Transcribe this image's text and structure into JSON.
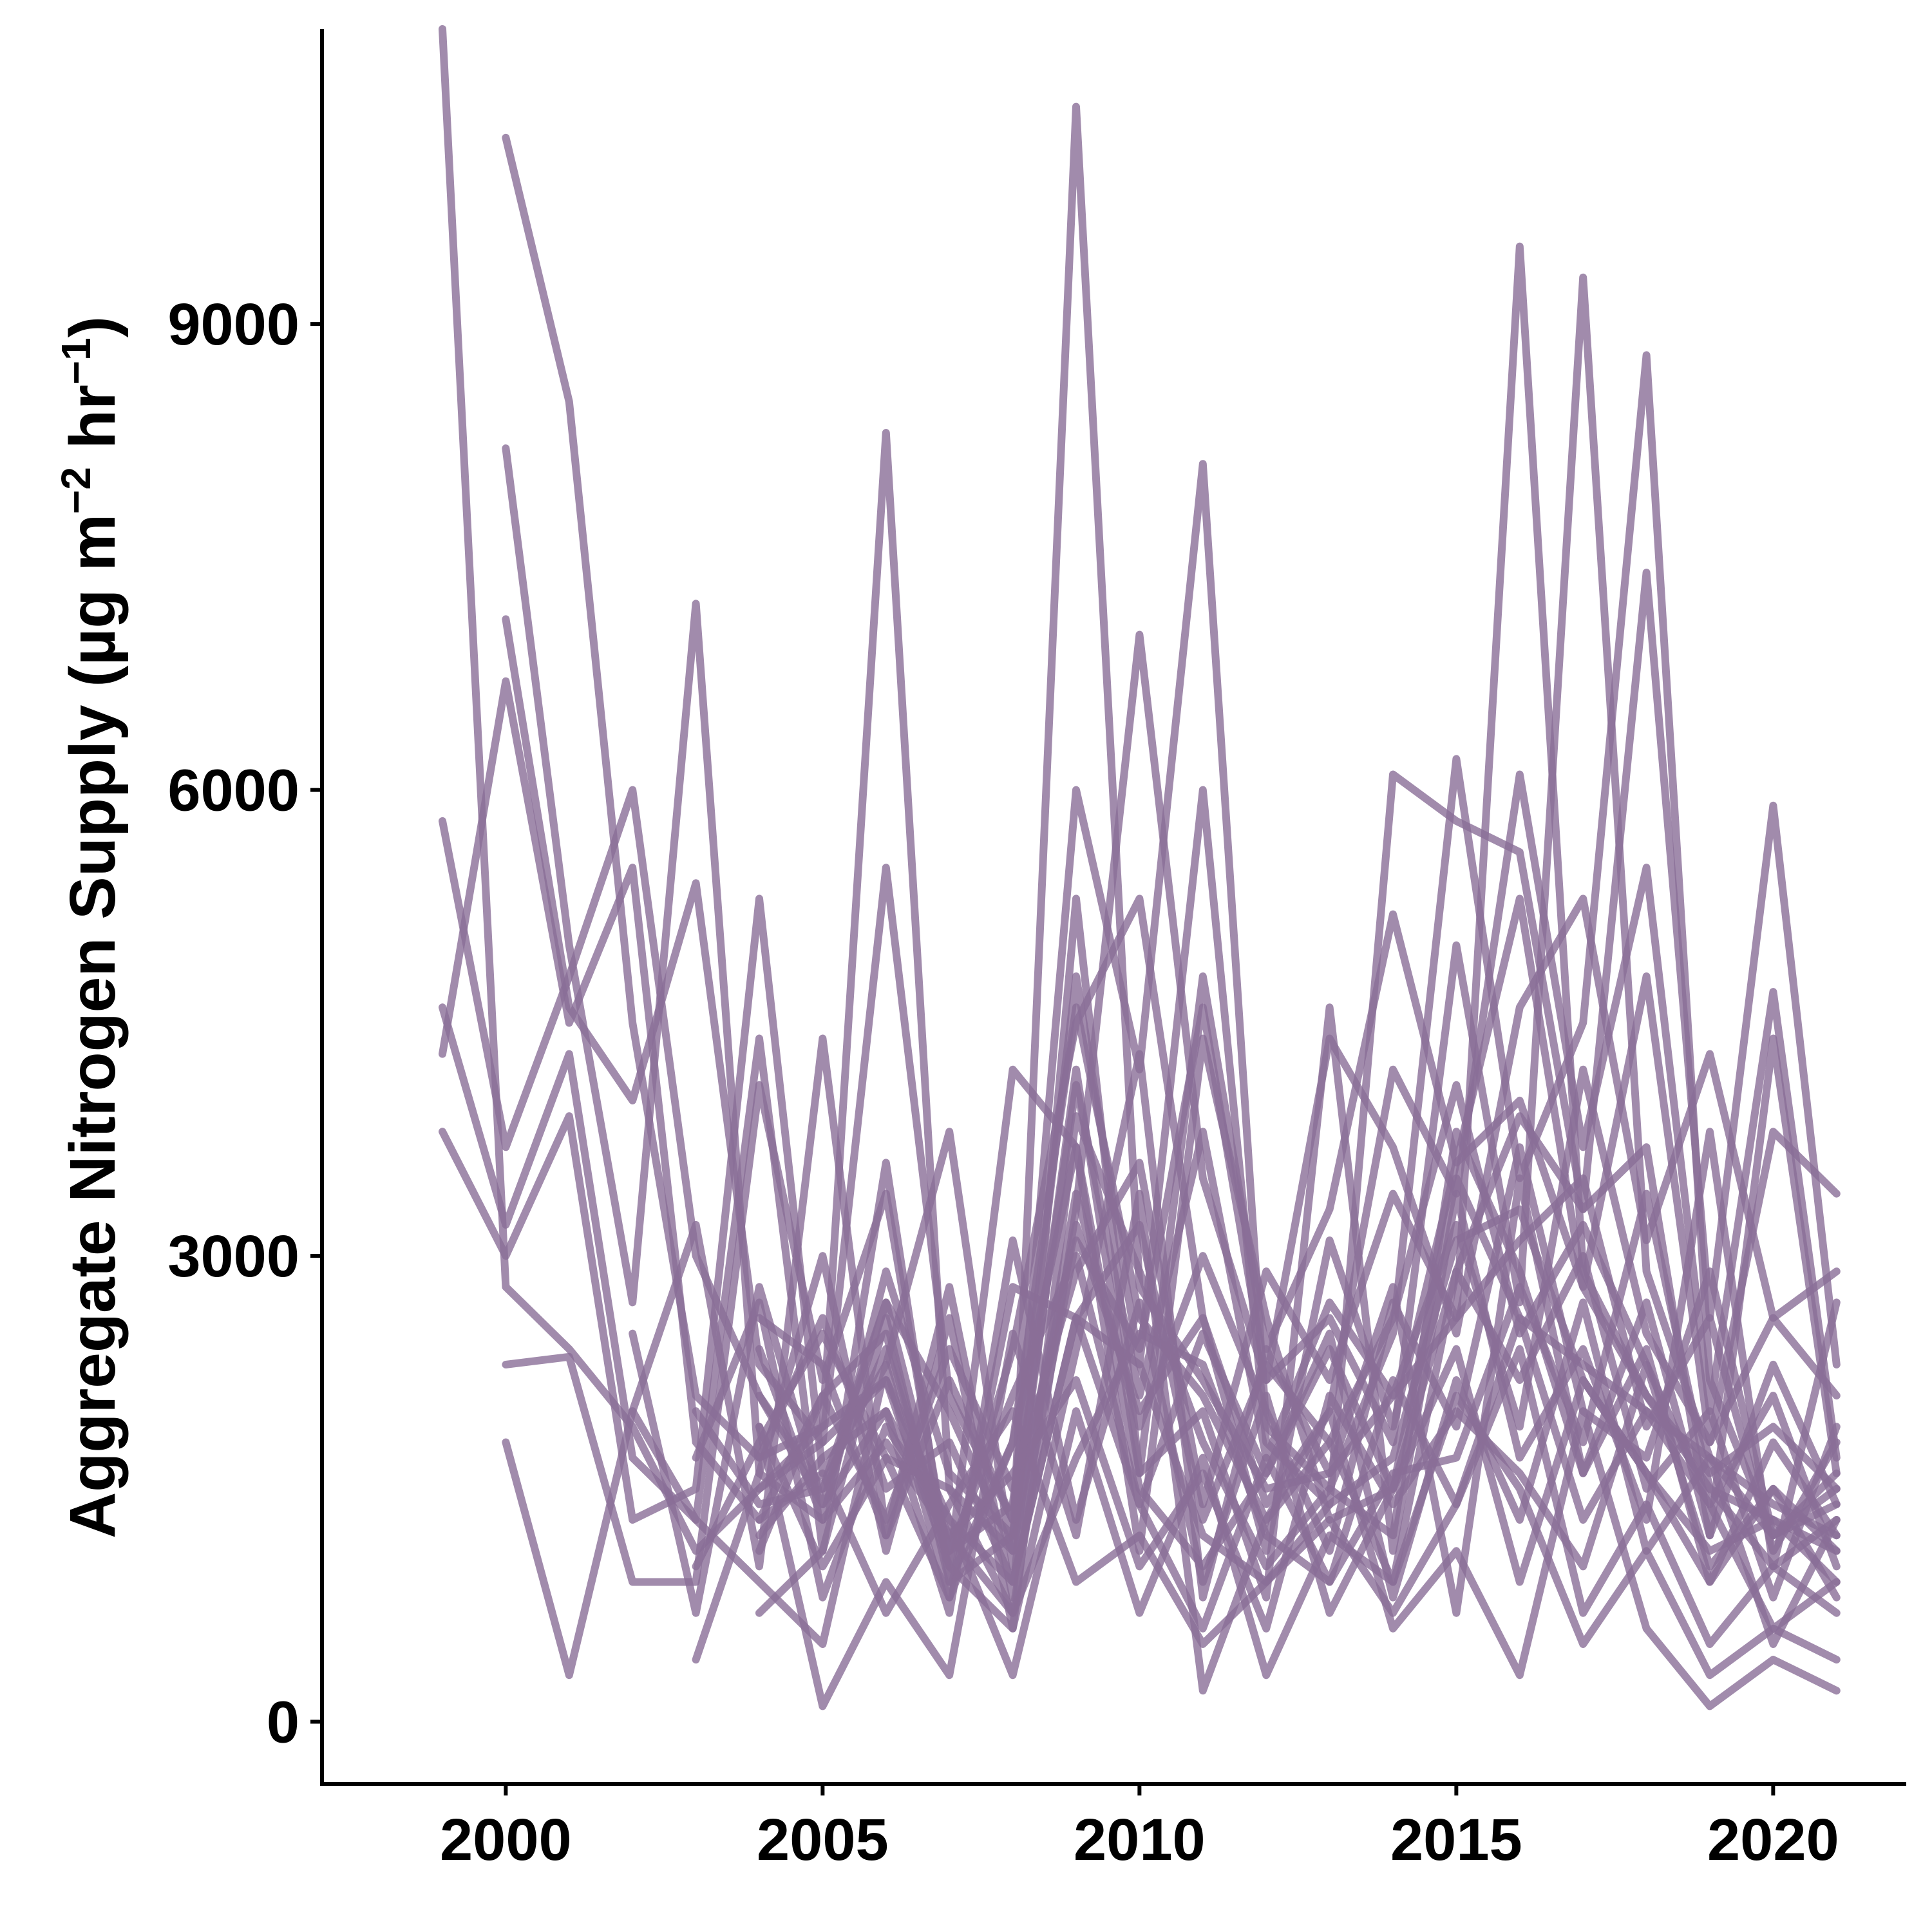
{
  "chart_data": {
    "type": "line",
    "title": "",
    "xlabel": "",
    "ylabel": {
      "text": "Aggregate Nitrogen Supply (µg  m",
      "sup1": "−2",
      "mid": "  hr",
      "sup2": "−1",
      "end": ")"
    },
    "xlim": [
      1997.1,
      2022.1
    ],
    "ylim": [
      -400,
      10900
    ],
    "xticks": [
      2000,
      2005,
      2010,
      2015,
      2020
    ],
    "yticks": [
      0,
      3000,
      6000,
      9000
    ],
    "xtick_labels": [
      "2000",
      "2005",
      "2010",
      "2015",
      "2020"
    ],
    "ytick_labels": [
      "0",
      "3000",
      "6000",
      "9000"
    ],
    "grid": false,
    "legend": "none",
    "line_color": "#8a6e97",
    "line_opacity": 0.8,
    "series": [
      {
        "x": [
          1999,
          2000,
          2001,
          2002,
          2003,
          2004,
          2005,
          2006,
          2007,
          2008,
          2009,
          2010,
          2011,
          2012,
          2013,
          2014,
          2015,
          2016,
          2017,
          2018,
          2019,
          2020,
          2021
        ],
        "values": [
          10900,
          2800,
          2400,
          1900,
          1100,
          1500,
          1800,
          2200,
          1300,
          900,
          2600,
          2300,
          1200,
          900,
          1400,
          1700,
          3100,
          3300,
          2200,
          1600,
          1100,
          1300,
          900
        ]
      },
      {
        "x": [
          2000,
          2001,
          2002,
          2003,
          2004,
          2005,
          2006,
          2007,
          2008,
          2009,
          2010,
          2011,
          2012,
          2013,
          2014,
          2015,
          2016,
          2017,
          2018,
          2019,
          2020,
          2021
        ],
        "values": [
          10200,
          8500,
          4500,
          2100,
          1700,
          1900,
          8300,
          1500,
          1100,
          10400,
          2800,
          2200,
          1500,
          1600,
          2100,
          2600,
          9500,
          2900,
          2100,
          1500,
          1300,
          1100
        ]
      },
      {
        "x": [
          2000,
          2001,
          2002,
          2003,
          2004,
          2005,
          2006,
          2007,
          2008,
          2009,
          2010,
          2011,
          2012,
          2013,
          2014,
          2015,
          2016,
          2017,
          2018,
          2019,
          2020,
          2021
        ],
        "values": [
          8200,
          5000,
          2700,
          7200,
          1600,
          1300,
          1800,
          1200,
          700,
          3300,
          7000,
          3500,
          2200,
          2600,
          1800,
          5000,
          2700,
          9300,
          2900,
          1700,
          1400,
          1200
        ]
      },
      {
        "x": [
          2000,
          2001,
          2002,
          2003,
          2004,
          2005,
          2006,
          2007,
          2008,
          2009,
          2010,
          2011,
          2012,
          2013,
          2014,
          2015,
          2016,
          2017,
          2018,
          2019,
          2020,
          2021
        ],
        "values": [
          7100,
          4600,
          4000,
          5400,
          2300,
          1800,
          5500,
          2100,
          1300,
          6000,
          4200,
          8100,
          1900,
          1500,
          2500,
          6200,
          3500,
          4500,
          8800,
          2200,
          1200,
          1400
        ]
      },
      {
        "x": [
          1999,
          2000,
          2001,
          2002,
          2003,
          2004,
          2005,
          2006,
          2007,
          2008,
          2009,
          2010,
          2011,
          2012,
          2013,
          2014,
          2015,
          2016,
          2017,
          2018,
          2019,
          2020,
          2021
        ],
        "values": [
          5800,
          3700,
          4800,
          6000,
          3000,
          2100,
          1500,
          2700,
          1100,
          1400,
          4800,
          2300,
          6000,
          1800,
          1400,
          6100,
          5800,
          5600,
          3300,
          7400,
          2600,
          5900,
          2300
        ]
      },
      {
        "x": [
          1999,
          2000,
          2001,
          2002,
          2003,
          2004,
          2005,
          2006,
          2007,
          2008,
          2009,
          2010,
          2011,
          2012,
          2013,
          2014,
          2015,
          2016,
          2017,
          2018,
          2019,
          2020,
          2021
        ],
        "values": [
          4300,
          6700,
          4500,
          5500,
          1800,
          1300,
          2100,
          2500,
          1000,
          2400,
          4500,
          5300,
          2600,
          1400,
          2000,
          4200,
          3400,
          6100,
          3700,
          5500,
          2000,
          4700,
          1700
        ]
      },
      {
        "x": [
          1999,
          2000,
          2001,
          2002,
          2003,
          2004,
          2005,
          2006,
          2007,
          2008,
          2009,
          2010,
          2011,
          2012,
          2013,
          2014,
          2015,
          2016,
          2017,
          2018,
          2019,
          2020,
          2021
        ],
        "values": [
          4600,
          3200,
          4300,
          1700,
          1300,
          4400,
          1100,
          3600,
          900,
          1200,
          4200,
          1600,
          4800,
          2400,
          3300,
          5200,
          3600,
          5300,
          2800,
          4800,
          1800,
          3800,
          3400
        ]
      },
      {
        "x": [
          1999,
          2000,
          2001,
          2002,
          2003,
          2004,
          2005,
          2006,
          2007,
          2008,
          2009,
          2010,
          2011,
          2012,
          2013,
          2014,
          2015,
          2016,
          2017,
          2018,
          2019,
          2020,
          2021
        ],
        "values": [
          3800,
          3000,
          3900,
          1300,
          1500,
          5300,
          1600,
          2300,
          3800,
          1000,
          3100,
          2400,
          4600,
          2200,
          4400,
          3700,
          2500,
          4600,
          5300,
          3100,
          4300,
          2600,
          2900
        ]
      },
      {
        "x": [
          2000,
          2001,
          2002,
          2003,
          2004,
          2005,
          2006,
          2007,
          2008,
          2009,
          2010,
          2011,
          2012,
          2013,
          2014,
          2015,
          2016,
          2017,
          2018,
          2019,
          2020,
          2021
        ],
        "values": [
          2300,
          2350,
          900,
          900,
          4100,
          2200,
          3400,
          1000,
          4200,
          3700,
          1100,
          4400,
          2600,
          1300,
          1500,
          2900,
          3900,
          3300,
          3700,
          1200,
          4400,
          1600
        ]
      },
      {
        "x": [
          2000,
          2001,
          2002,
          2003,
          2004,
          2005,
          2006,
          2007,
          2008,
          2009,
          2010,
          2011,
          2012,
          2013,
          2014,
          2015,
          2016,
          2017,
          2018,
          2019,
          2020,
          2021
        ],
        "values": [
          1800,
          300,
          2000,
          3200,
          1000,
          4400,
          1200,
          2800,
          800,
          5300,
          1600,
          2000,
          800,
          4600,
          1100,
          3400,
          1700,
          2400,
          1300,
          3800,
          1000,
          2700
        ]
      },
      {
        "x": [
          2002,
          2003,
          2004,
          2005,
          2006,
          2007,
          2008,
          2009,
          2010,
          2011,
          2012,
          2013,
          2014,
          2015,
          2016,
          2017,
          2018,
          2019,
          2020,
          2021
        ],
        "values": [
          2000,
          1300,
          900,
          500,
          2300,
          800,
          2800,
          2600,
          1400,
          600,
          1700,
          900,
          2200,
          1400,
          2600,
          1300,
          2000,
          1400,
          600,
          900
        ]
      },
      {
        "x": [
          2002,
          2003,
          2004,
          2005,
          2006,
          2007,
          2008,
          2009,
          2010,
          2011,
          2012,
          2013,
          2014,
          2015,
          2016,
          2017,
          2018,
          2019,
          2020,
          2021
        ],
        "values": [
          2500,
          700,
          2800,
          1400,
          2000,
          700,
          3100,
          1300,
          2700,
          900,
          2100,
          700,
          1500,
          2400,
          900,
          2200,
          1600,
          900,
          1800,
          1200
        ]
      },
      {
        "x": [
          2003,
          2004,
          2005,
          2006,
          2007,
          2008,
          2009,
          2010,
          2011,
          2012,
          2013,
          2014,
          2015,
          2016,
          2017,
          2018,
          2019,
          2020,
          2021
        ],
        "values": [
          400,
          1600,
          3000,
          1100,
          2600,
          600,
          2400,
          4300,
          800,
          2400,
          1600,
          2800,
          700,
          3500,
          1600,
          2400,
          900,
          1500,
          800
        ]
      },
      {
        "x": [
          2004,
          2005,
          2006,
          2007,
          2008,
          2009,
          2010,
          2011,
          2012,
          2013,
          2014,
          2015,
          2016,
          2017,
          2018,
          2019,
          2020,
          2021
        ],
        "values": [
          700,
          1100,
          2600,
          900,
          1800,
          3700,
          1500,
          1000,
          1600,
          2500,
          800,
          2200,
          1300,
          2700,
          1100,
          1700,
          500,
          1300
        ]
      },
      {
        "x": [
          2004,
          2005,
          2006,
          2007,
          2008,
          2009,
          2010,
          2011,
          2012,
          2013,
          2014,
          2015,
          2016,
          2017,
          2018,
          2019,
          2020,
          2021
        ],
        "values": [
          1900,
          100,
          900,
          300,
          2500,
          1200,
          3400,
          200,
          1300,
          2000,
          600,
          1100,
          300,
          2000,
          600,
          100,
          400,
          200
        ]
      },
      {
        "x": [
          2003,
          2004,
          2005,
          2006,
          2007,
          2008,
          2009,
          2010,
          2011,
          2012,
          2013,
          2014,
          2015,
          2016,
          2017,
          2018,
          2019,
          2020,
          2021
        ],
        "values": [
          1700,
          2700,
          800,
          1900,
          1300,
          300,
          2000,
          700,
          1700,
          300,
          1200,
          900,
          2100,
          1500,
          500,
          1100,
          300,
          600,
          400
        ]
      },
      {
        "x": [
          2004,
          2005,
          2006,
          2007,
          2008,
          2009,
          2010,
          2011,
          2012,
          2013,
          2014,
          2015,
          2016,
          2017,
          2018,
          2019,
          2020,
          2021
        ],
        "values": [
          1300,
          1600,
          700,
          1400,
          2000,
          900,
          1200,
          500,
          900,
          1300,
          700,
          1400,
          2400,
          700,
          1400,
          500,
          1000,
          700
        ]
      },
      {
        "x": [
          2004,
          2005,
          2006,
          2007,
          2008,
          2009,
          2010,
          2011,
          2012,
          2013,
          2014,
          2015,
          2016,
          2017,
          2018,
          2019,
          2020,
          2021
        ],
        "values": [
          2400,
          1300,
          2900,
          1600,
          1200,
          3200,
          2000,
          2600,
          1100,
          3100,
          1900,
          3600,
          4000,
          2800,
          2100,
          1600,
          1900,
          1500
        ]
      },
      {
        "x": [
          2004,
          2005,
          2006,
          2007,
          2008,
          2009,
          2010,
          2011,
          2012,
          2013,
          2014,
          2015,
          2016,
          2017,
          2018,
          2019,
          2020,
          2021
        ],
        "values": [
          1100,
          2100,
          1300,
          2400,
          1500,
          2900,
          3600,
          1400,
          2900,
          2200,
          3400,
          2600,
          3100,
          3500,
          1900,
          2600,
          1100,
          1800
        ]
      },
      {
        "x": [
          2003,
          2004,
          2005,
          2006,
          2007,
          2008,
          2009,
          2010,
          2011,
          2012,
          2013,
          2014,
          2015,
          2016,
          2017,
          2018,
          2019,
          2020,
          2021
        ],
        "values": [
          1000,
          1800,
          2500,
          1700,
          800,
          1800,
          4600,
          2600,
          2100,
          1300,
          1800,
          2600,
          4100,
          2500,
          3200,
          2300,
          1400,
          2100,
          1000
        ]
      },
      {
        "x": [
          2004,
          2005,
          2006,
          2007,
          2008,
          2009,
          2010,
          2011,
          2012,
          2013,
          2014,
          2015,
          2016,
          2017,
          2018,
          2019,
          2020,
          2021
        ],
        "values": [
          1500,
          1900,
          2200,
          1000,
          600,
          3900,
          2900,
          1800,
          1000,
          1500,
          1200,
          3800,
          2900,
          1600,
          2700,
          1200,
          2300,
          1400
        ]
      },
      {
        "x": [
          2004,
          2005,
          2006,
          2007,
          2008,
          2009,
          2010,
          2011,
          2012,
          2013,
          2014,
          2015,
          2016,
          2017,
          2018,
          2019,
          2020,
          2021
        ],
        "values": [
          2100,
          1400,
          2700,
          2000,
          1100,
          3400,
          1900,
          3000,
          2000,
          1100,
          2700,
          1900,
          3700,
          2000,
          1700,
          2900,
          1200,
          1600
        ]
      },
      {
        "x": [
          2004,
          2005,
          2006,
          2007,
          2008,
          2009,
          2010,
          2011,
          2012,
          2013,
          2014,
          2015,
          2016,
          2017,
          2018,
          2019,
          2020,
          2021
        ],
        "values": [
          1700,
          2600,
          1500,
          1800,
          900,
          2600,
          3200,
          1300,
          2300,
          1800,
          900,
          2900,
          2200,
          3000,
          1500,
          2000,
          800,
          1900
        ]
      },
      {
        "x": [
          2004,
          2005,
          2006,
          2007,
          2008,
          2009,
          2010,
          2011,
          2012,
          2013,
          2014,
          2015,
          2016,
          2017,
          2018,
          2019,
          2020,
          2021
        ],
        "values": [
          1200,
          1700,
          2000,
          1200,
          1600,
          2200,
          1000,
          1600,
          600,
          2100,
          1400,
          2000,
          1600,
          1000,
          2300,
          1000,
          1500,
          1100
        ]
      },
      {
        "x": [
          2004,
          2005,
          2006,
          2007,
          2008,
          2009,
          2010,
          2011,
          2012,
          2013,
          2014,
          2015,
          2016,
          2017,
          2018,
          2019,
          2020,
          2021
        ],
        "values": [
          2600,
          2300,
          1200,
          2200,
          1300,
          4100,
          2100,
          3800,
          1700,
          2700,
          2100,
          3200,
          1900,
          4200,
          2500,
          1800,
          2600,
          2100
        ]
      },
      {
        "x": [
          2004,
          2005,
          2006,
          2007,
          2008,
          2009,
          2010,
          2011,
          2012,
          2013,
          2014,
          2015,
          2016,
          2017,
          2018,
          2019,
          2020,
          2021
        ],
        "values": [
          1900,
          1000,
          1700,
          1500,
          700,
          1700,
          2500,
          2300,
          1200,
          900,
          1600,
          1700,
          2800,
          1800,
          3400,
          1500,
          1000,
          1300
        ]
      },
      {
        "x": [
          2003,
          2004,
          2005,
          2006,
          2007,
          2008,
          2009,
          2010,
          2011,
          2012,
          2013,
          2014,
          2015,
          2016,
          2017,
          2018,
          2019,
          2020,
          2021
        ],
        "values": [
          2000,
          1400,
          1500,
          2400,
          1100,
          2100,
          3000,
          1400,
          2500,
          1600,
          2400,
          1500,
          3500,
          2600,
          2300,
          2000,
          1700,
          1200,
          1500
        ]
      }
    ]
  }
}
